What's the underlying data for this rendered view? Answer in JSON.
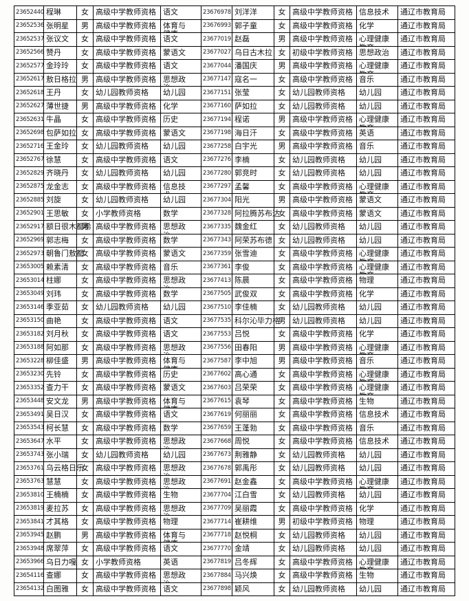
{
  "document": {
    "kind": "teacher-qualification-roster-page",
    "issuing_authority": "通辽市教育局"
  },
  "colors": {
    "page_background": "#fdfdfc",
    "table_background": "#ffffff",
    "border": "#000000",
    "text": "#141414"
  },
  "table": {
    "column_keys_left": [
      "exam_id",
      "name",
      "gender",
      "qualification_type",
      "subject"
    ],
    "column_keys_right": [
      "exam_id",
      "name",
      "gender",
      "qualification_type",
      "subject",
      "issuing_authority"
    ],
    "left_rows": [
      [
        "23652440",
        "程琳",
        "女",
        "高级中学教师资格",
        "语文"
      ],
      [
        "23652536",
        "张明星",
        "男",
        "高级中学教师资格",
        "体育与健康"
      ],
      [
        "23652537",
        "张议文",
        "女",
        "高级中学教师资格",
        "语文"
      ],
      [
        "23652566",
        "赞丹",
        "女",
        "高级中学教师资格",
        "蒙语文"
      ],
      [
        "23652577",
        "金玲玲",
        "女",
        "高级中学教师资格",
        "语文"
      ],
      [
        "23652617",
        "敖日格拉",
        "男",
        "高级中学教师资格",
        "思想政治"
      ],
      [
        "23652618",
        "王丹",
        "女",
        "幼儿园教师资格",
        "幼儿园"
      ],
      [
        "23652627",
        "薄世捷",
        "男",
        "高级中学教师资格",
        "化学"
      ],
      [
        "23652631",
        "牛晶",
        "女",
        "高级中学教师资格",
        "历史"
      ],
      [
        "23652698",
        "包萨如拉",
        "女",
        "高级中学教师资格",
        "蒙语文"
      ],
      [
        "23652716",
        "王金玲",
        "女",
        "幼儿园教师资格",
        "幼儿园"
      ],
      [
        "23652767",
        "徐慧",
        "女",
        "高级中学教师资格",
        "语文"
      ],
      [
        "23652829",
        "齐晓丹",
        "女",
        "幼儿园教师资格",
        "幼儿园"
      ],
      [
        "23652875",
        "龙金志",
        "女",
        "高级中学教师资格",
        "信息技术"
      ],
      [
        "23652885",
        "刘旋",
        "女",
        "幼儿园教师资格",
        "幼儿园"
      ],
      [
        "23652901",
        "王思敏",
        "女",
        "小学教师资格",
        "数学"
      ],
      [
        "23652917",
        "额日很木都希",
        "男",
        "高级中学教师资格",
        "思想政治"
      ],
      [
        "23652969",
        "郭志梅",
        "女",
        "高级中学教师资格",
        "数学"
      ],
      [
        "23652973",
        "朝鲁门敖都",
        "女",
        "高级中学教师资格",
        "蒙语文"
      ],
      [
        "23653005",
        "赖素清",
        "女",
        "高级中学教师资格",
        "音乐"
      ],
      [
        "23653014",
        "柱娜",
        "女",
        "高级中学教师资格",
        "思想政治"
      ],
      [
        "23653049",
        "刘玮",
        "女",
        "高级中学教师资格",
        "数学"
      ],
      [
        "23653146",
        "季亚茹",
        "女",
        "幼儿园教师资格",
        "幼儿园"
      ],
      [
        "23653150",
        "曲艳",
        "女",
        "高级中学教师资格",
        "语文"
      ],
      [
        "23653182",
        "刘月秋",
        "女",
        "高级中学教师资格",
        "语文"
      ],
      [
        "23653188",
        "阿如那",
        "女",
        "高级中学教师资格",
        "思想政治"
      ],
      [
        "23653228",
        "柳佳盛",
        "男",
        "高级中学教师资格",
        "体育与健康"
      ],
      [
        "23653230",
        "先铃",
        "女",
        "高级中学教师资格",
        "历史"
      ],
      [
        "23653352",
        "查力干",
        "女",
        "高级中学教师资格",
        "蒙语文"
      ],
      [
        "23653448",
        "安文龙",
        "男",
        "高级中学教师资格",
        "体育与健康"
      ],
      [
        "23653491",
        "吴日汉",
        "女",
        "高级中学教师资格",
        "语文"
      ],
      [
        "23653543",
        "柯长慧",
        "女",
        "高级中学教师资格",
        "数学"
      ],
      [
        "23653647",
        "水平",
        "女",
        "高级中学教师资格",
        "思想政治"
      ],
      [
        "23653743",
        "张小瑞",
        "女",
        "幼儿园教师资格",
        "幼儿园"
      ],
      [
        "23653761",
        "乌云格日乐",
        "女",
        "高级中学教师资格",
        "思想政治"
      ],
      [
        "23653763",
        "慧慧",
        "女",
        "高级中学教师资格",
        "思想政治"
      ],
      [
        "23653810",
        "王楠楠",
        "女",
        "高级中学教师资格",
        "生物"
      ],
      [
        "23653819",
        "麦拉苏",
        "女",
        "高级中学教师资格",
        "思想政治"
      ],
      [
        "23653841",
        "才其格",
        "女",
        "高级中学教师资格",
        "物理"
      ],
      [
        "23653945",
        "赵鹏",
        "男",
        "高级中学教师资格",
        "体育与健康"
      ],
      [
        "23653948",
        "席翠萍",
        "女",
        "高级中学教师资格",
        "语文"
      ],
      [
        "23653966",
        "乌日力嘎",
        "女",
        "小学教师资格",
        "英语"
      ],
      [
        "23654116",
        "查娜",
        "女",
        "高级中学教师资格",
        "思想政治"
      ],
      [
        "23654132",
        "白图雅",
        "女",
        "高级中学教师资格",
        "语文"
      ]
    ],
    "right_rows": [
      [
        "23676978",
        "刘洋洋",
        "女",
        "高级中学教师资格",
        "信息技术",
        "通辽市教育局"
      ],
      [
        "23676993",
        "郭子童",
        "女",
        "高级中学教师资格",
        "化学",
        "通辽市教育局"
      ],
      [
        "23677019",
        "赵磊",
        "男",
        "高级中学教师资格",
        "心理健康教育",
        "通辽市教育局"
      ],
      [
        "23677027",
        "乌日古木拉",
        "女",
        "初级中学教师资格",
        "思想政治",
        "通辽市教育局"
      ],
      [
        "23677044",
        "潘国庆",
        "男",
        "高级中学教师资格",
        "心理健康教育",
        "通辽市教育局"
      ],
      [
        "23677147",
        "寇名一",
        "女",
        "高级中学教师资格",
        "音乐",
        "通辽市教育局"
      ],
      [
        "23677151",
        "张莹",
        "女",
        "幼儿园教师资格",
        "幼儿园",
        "通辽市教育局"
      ],
      [
        "23677160",
        "萨如拉",
        "女",
        "幼儿园教师资格",
        "幼儿园",
        "通辽市教育局"
      ],
      [
        "23677194",
        "程诺",
        "男",
        "高级中学教师资格",
        "心理健康教育",
        "通辽市教育局"
      ],
      [
        "23677198",
        "海日汗",
        "女",
        "高级中学教师资格",
        "英语",
        "通辽市教育局"
      ],
      [
        "23677258",
        "白宇光",
        "男",
        "高级中学教师资格",
        "音乐",
        "通辽市教育局"
      ],
      [
        "23677276",
        "李楠",
        "女",
        "幼儿园教师资格",
        "幼儿园",
        "通辽市教育局"
      ],
      [
        "23677280",
        "郭竞时",
        "女",
        "幼儿园教师资格",
        "幼儿园",
        "通辽市教育局"
      ],
      [
        "23677297",
        "孟馨",
        "女",
        "高级中学教师资格",
        "心理健康教育",
        "通辽市教育局"
      ],
      [
        "23677304",
        "阳光",
        "男",
        "高级中学教师资格",
        "蒙语文",
        "通辽市教育局"
      ],
      [
        "23677328",
        "阿拉腾苏布达",
        "女",
        "高级中学教师资格",
        "蒙语文",
        "通辽市教育局"
      ],
      [
        "23677335",
        "魏金红",
        "女",
        "幼儿园教师资格",
        "幼儿园",
        "通辽市教育局"
      ],
      [
        "23677343",
        "阿荣苏布德",
        "女",
        "幼儿园教师资格",
        "幼儿园",
        "通辽市教育局"
      ],
      [
        "23677359",
        "张雪迪",
        "女",
        "高级中学教师资格",
        "心理健康教育",
        "通辽市教育局"
      ],
      [
        "23677361",
        "李俊",
        "女",
        "高级中学教师资格",
        "心理健康教育",
        "通辽市教育局"
      ],
      [
        "23677413",
        "陈晨",
        "女",
        "高级中学教师资格",
        "物理",
        "通辽市教育局"
      ],
      [
        "23677505",
        "武俊双",
        "女",
        "高级中学教师资格",
        "化学",
        "通辽市教育局"
      ],
      [
        "23677510",
        "李佳楠",
        "女",
        "幼儿园教师资格",
        "幼儿园",
        "通辽市教育局"
      ],
      [
        "23677535",
        "科尔沁毕力格",
        "男",
        "幼儿园教师资格",
        "幼儿园",
        "通辽市教育局"
      ],
      [
        "23677553",
        "吕悦",
        "女",
        "高级中学教师资格",
        "化学",
        "通辽市教育局"
      ],
      [
        "23677556",
        "田春阳",
        "男",
        "高级中学教师资格",
        "心理健康教育",
        "通辽市教育局"
      ],
      [
        "23677587",
        "李中旭",
        "男",
        "高级中学教师资格",
        "音乐",
        "通辽市教育局"
      ],
      [
        "23677602",
        "高心通",
        "女",
        "高级中学教师资格",
        "心理健康教育",
        "通辽市教育局"
      ],
      [
        "23677603",
        "吕荣荣",
        "女",
        "高级中学教师资格",
        "心理健康教育",
        "通辽市教育局"
      ],
      [
        "23677615",
        "袁琴",
        "女",
        "高级中学教师资格",
        "生物",
        "通辽市教育局"
      ],
      [
        "23677619",
        "何丽丽",
        "女",
        "高级中学教师资格",
        "信息技术",
        "通辽市教育局"
      ],
      [
        "23677659",
        "王蓬勃",
        "女",
        "高级中学教师资格",
        "音乐",
        "通辽市教育局"
      ],
      [
        "23677668",
        "周悦",
        "女",
        "高级中学教师资格",
        "信息技术",
        "通辽市教育局"
      ],
      [
        "23677673",
        "荆雅静",
        "女",
        "幼儿园教师资格",
        "幼儿园",
        "通辽市教育局"
      ],
      [
        "23677678",
        "郭禹彤",
        "女",
        "幼儿园教师资格",
        "幼儿园",
        "通辽市教育局"
      ],
      [
        "23677691",
        "赵金鑫",
        "女",
        "高级中学教师资格",
        "心理健康教育",
        "通辽市教育局"
      ],
      [
        "23677704",
        "江白雪",
        "女",
        "幼儿园教师资格",
        "幼儿园",
        "通辽市教育局"
      ],
      [
        "23677709",
        "吴丽霞",
        "女",
        "高级中学教师资格",
        "化学",
        "通辽市教育局"
      ],
      [
        "23677714",
        "崔耕维",
        "男",
        "初级中学教师资格",
        "物理",
        "通辽市教育局"
      ],
      [
        "23677718",
        "赵悦桐",
        "女",
        "幼儿园教师资格",
        "幼儿园",
        "通辽市教育局"
      ],
      [
        "23677770",
        "金靖",
        "女",
        "幼儿园教师资格",
        "幼儿园",
        "通辽市教育局"
      ],
      [
        "23677819",
        "吕冬辉",
        "女",
        "高级中学教师资格",
        "心理健康教育",
        "通辽市教育局"
      ],
      [
        "23677884",
        "马兴焕",
        "女",
        "高级中学教师资格",
        "生物",
        "通辽市教育局"
      ],
      [
        "23677898",
        "颖风",
        "女",
        "幼儿园教师资格",
        "幼儿园",
        "通辽市教育局"
      ]
    ]
  }
}
